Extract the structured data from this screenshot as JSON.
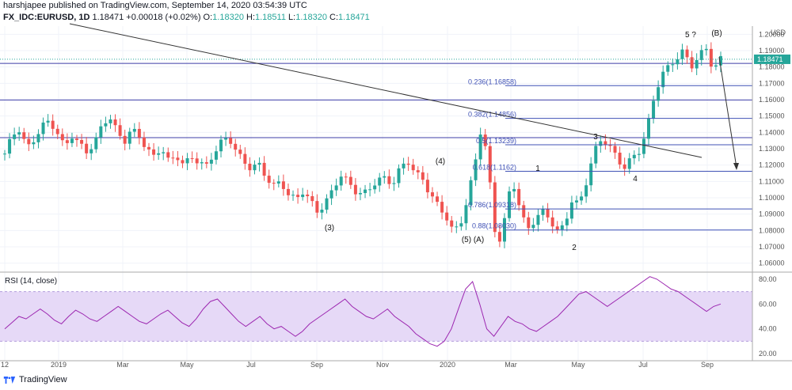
{
  "header": {
    "publisher_line": "harshjapee published on TradingView.com, September 14, 2020 03:54:39 UTC",
    "symbol": "FX_IDC:EURUSD, 1D",
    "last": "1.18471",
    "change": "+0.00018 (+0.02%)",
    "o_label": "O:",
    "o_value": "1.18320",
    "h_label": "H:",
    "h_value": "1.18511",
    "l_label": "L:",
    "l_value": "1.18320",
    "c_label": "C:",
    "c_value": "1.18471"
  },
  "footer": {
    "brand": "TradingView"
  },
  "colors": {
    "up": "#26a69a",
    "down": "#ef5350",
    "fib": "#3f51b5",
    "rsi": "#9c27b0",
    "rsi_band": "#e6d9f7",
    "price_tag": "#26a69a"
  },
  "chart_data": [
    {
      "type": "candlestick",
      "title": "FX_IDC:EURUSD, 1D",
      "ylabel": "USD",
      "ylim": [
        1.055,
        1.205
      ],
      "y_ticks": [
        "1.20000",
        "1.19000",
        "1.18000",
        "1.17000",
        "1.16000",
        "1.15000",
        "1.14000",
        "1.13000",
        "1.12000",
        "1.11000",
        "1.10000",
        "1.09000",
        "1.08000",
        "1.07000",
        "1.06000"
      ],
      "x_ticks": [
        "12",
        "2019",
        "Mar",
        "May",
        "Jul",
        "Sep",
        "Nov",
        "2020",
        "Mar",
        "May",
        "Jul",
        "Sep"
      ],
      "last_price_tag": "1.18471",
      "close_path": [
        [
          0,
          1.127
        ],
        [
          6,
          1.138
        ],
        [
          12,
          1.142
        ],
        [
          18,
          1.13
        ],
        [
          24,
          1.136
        ],
        [
          30,
          1.144
        ],
        [
          36,
          1.147
        ],
        [
          42,
          1.14
        ],
        [
          48,
          1.131
        ],
        [
          54,
          1.138
        ],
        [
          60,
          1.133
        ],
        [
          66,
          1.128
        ],
        [
          72,
          1.133
        ],
        [
          78,
          1.144
        ],
        [
          84,
          1.15
        ],
        [
          90,
          1.141
        ],
        [
          96,
          1.134
        ],
        [
          102,
          1.142
        ],
        [
          108,
          1.138
        ],
        [
          114,
          1.13
        ],
        [
          120,
          1.125
        ],
        [
          126,
          1.131
        ],
        [
          132,
          1.122
        ],
        [
          138,
          1.126
        ],
        [
          144,
          1.12
        ],
        [
          150,
          1.125
        ],
        [
          156,
          1.122
        ],
        [
          162,
          1.119
        ],
        [
          168,
          1.127
        ],
        [
          174,
          1.134
        ],
        [
          180,
          1.137
        ],
        [
          186,
          1.129
        ],
        [
          192,
          1.122
        ],
        [
          198,
          1.118
        ],
        [
          204,
          1.121
        ],
        [
          210,
          1.113
        ],
        [
          216,
          1.107
        ],
        [
          222,
          1.11
        ],
        [
          228,
          1.102
        ],
        [
          234,
          1.099
        ],
        [
          240,
          1.104
        ],
        [
          246,
          1.098
        ],
        [
          252,
          1.091
        ],
        [
          258,
          1.097
        ],
        [
          264,
          1.105
        ],
        [
          270,
          1.114
        ],
        [
          276,
          1.11
        ],
        [
          282,
          1.104
        ],
        [
          288,
          1.102
        ],
        [
          294,
          1.106
        ],
        [
          300,
          1.111
        ],
        [
          306,
          1.112
        ],
        [
          312,
          1.108
        ],
        [
          318,
          1.118
        ],
        [
          324,
          1.123
        ],
        [
          330,
          1.115
        ],
        [
          336,
          1.112
        ],
        [
          342,
          1.102
        ],
        [
          348,
          1.096
        ],
        [
          354,
          1.09
        ],
        [
          360,
          1.08
        ],
        [
          366,
          1.083
        ],
        [
          372,
          1.098
        ],
        [
          378,
          1.12
        ],
        [
          384,
          1.146
        ],
        [
          390,
          1.111
        ],
        [
          396,
          1.068
        ],
        [
          402,
          1.086
        ],
        [
          408,
          1.112
        ],
        [
          414,
          1.095
        ],
        [
          420,
          1.08
        ],
        [
          426,
          1.086
        ],
        [
          432,
          1.092
        ],
        [
          438,
          1.088
        ],
        [
          444,
          1.079
        ],
        [
          450,
          1.083
        ],
        [
          456,
          1.098
        ],
        [
          462,
          1.096
        ],
        [
          468,
          1.11
        ],
        [
          474,
          1.128
        ],
        [
          480,
          1.136
        ],
        [
          486,
          1.132
        ],
        [
          492,
          1.125
        ],
        [
          498,
          1.118
        ],
        [
          504,
          1.124
        ],
        [
          510,
          1.128
        ],
        [
          516,
          1.14
        ],
        [
          522,
          1.16
        ],
        [
          528,
          1.175
        ],
        [
          534,
          1.18
        ],
        [
          540,
          1.185
        ],
        [
          546,
          1.19
        ],
        [
          552,
          1.18
        ],
        [
          558,
          1.186
        ],
        [
          564,
          1.192
        ],
        [
          570,
          1.178
        ],
        [
          576,
          1.185
        ]
      ],
      "fib_levels": [
        {
          "label": "0.236(1.16858)",
          "price": 1.16858
        },
        {
          "label": "0.382(1.14856)",
          "price": 1.14856
        },
        {
          "label": "0.5(1.13239)",
          "price": 1.13239
        },
        {
          "label": "0.618(1.1162)",
          "price": 1.1162
        },
        {
          "label": "0.786(1.09318)",
          "price": 1.09318
        },
        {
          "label": "0.88(1.08030)",
          "price": 1.0803
        }
      ],
      "horizontal_lines": [
        1.1822,
        1.1598,
        1.1368
      ],
      "wave_labels": [
        "5 ?",
        "(B)",
        "(4)",
        "(3)",
        "(5) (A)",
        "1",
        "2",
        "3",
        "4"
      ]
    },
    {
      "type": "line",
      "title": "RSI (14, close)",
      "ylim": [
        15,
        85
      ],
      "y_ticks": [
        "80.00",
        "60.00",
        "40.00",
        "20.00"
      ],
      "band": [
        30,
        70
      ],
      "values": [
        40,
        45,
        50,
        48,
        52,
        56,
        52,
        47,
        44,
        50,
        55,
        52,
        48,
        46,
        50,
        54,
        58,
        54,
        50,
        46,
        44,
        48,
        52,
        55,
        50,
        45,
        42,
        48,
        56,
        62,
        64,
        58,
        52,
        46,
        42,
        46,
        50,
        44,
        40,
        42,
        38,
        34,
        38,
        44,
        48,
        52,
        56,
        60,
        64,
        58,
        54,
        50,
        48,
        52,
        56,
        50,
        46,
        42,
        36,
        32,
        28,
        26,
        30,
        40,
        56,
        72,
        78,
        60,
        40,
        34,
        42,
        50,
        46,
        44,
        40,
        38,
        42,
        46,
        50,
        56,
        62,
        68,
        70,
        66,
        62,
        58,
        62,
        66,
        70,
        74,
        78,
        82,
        80,
        76,
        72,
        70,
        66,
        62,
        58,
        54,
        58,
        60
      ]
    }
  ]
}
